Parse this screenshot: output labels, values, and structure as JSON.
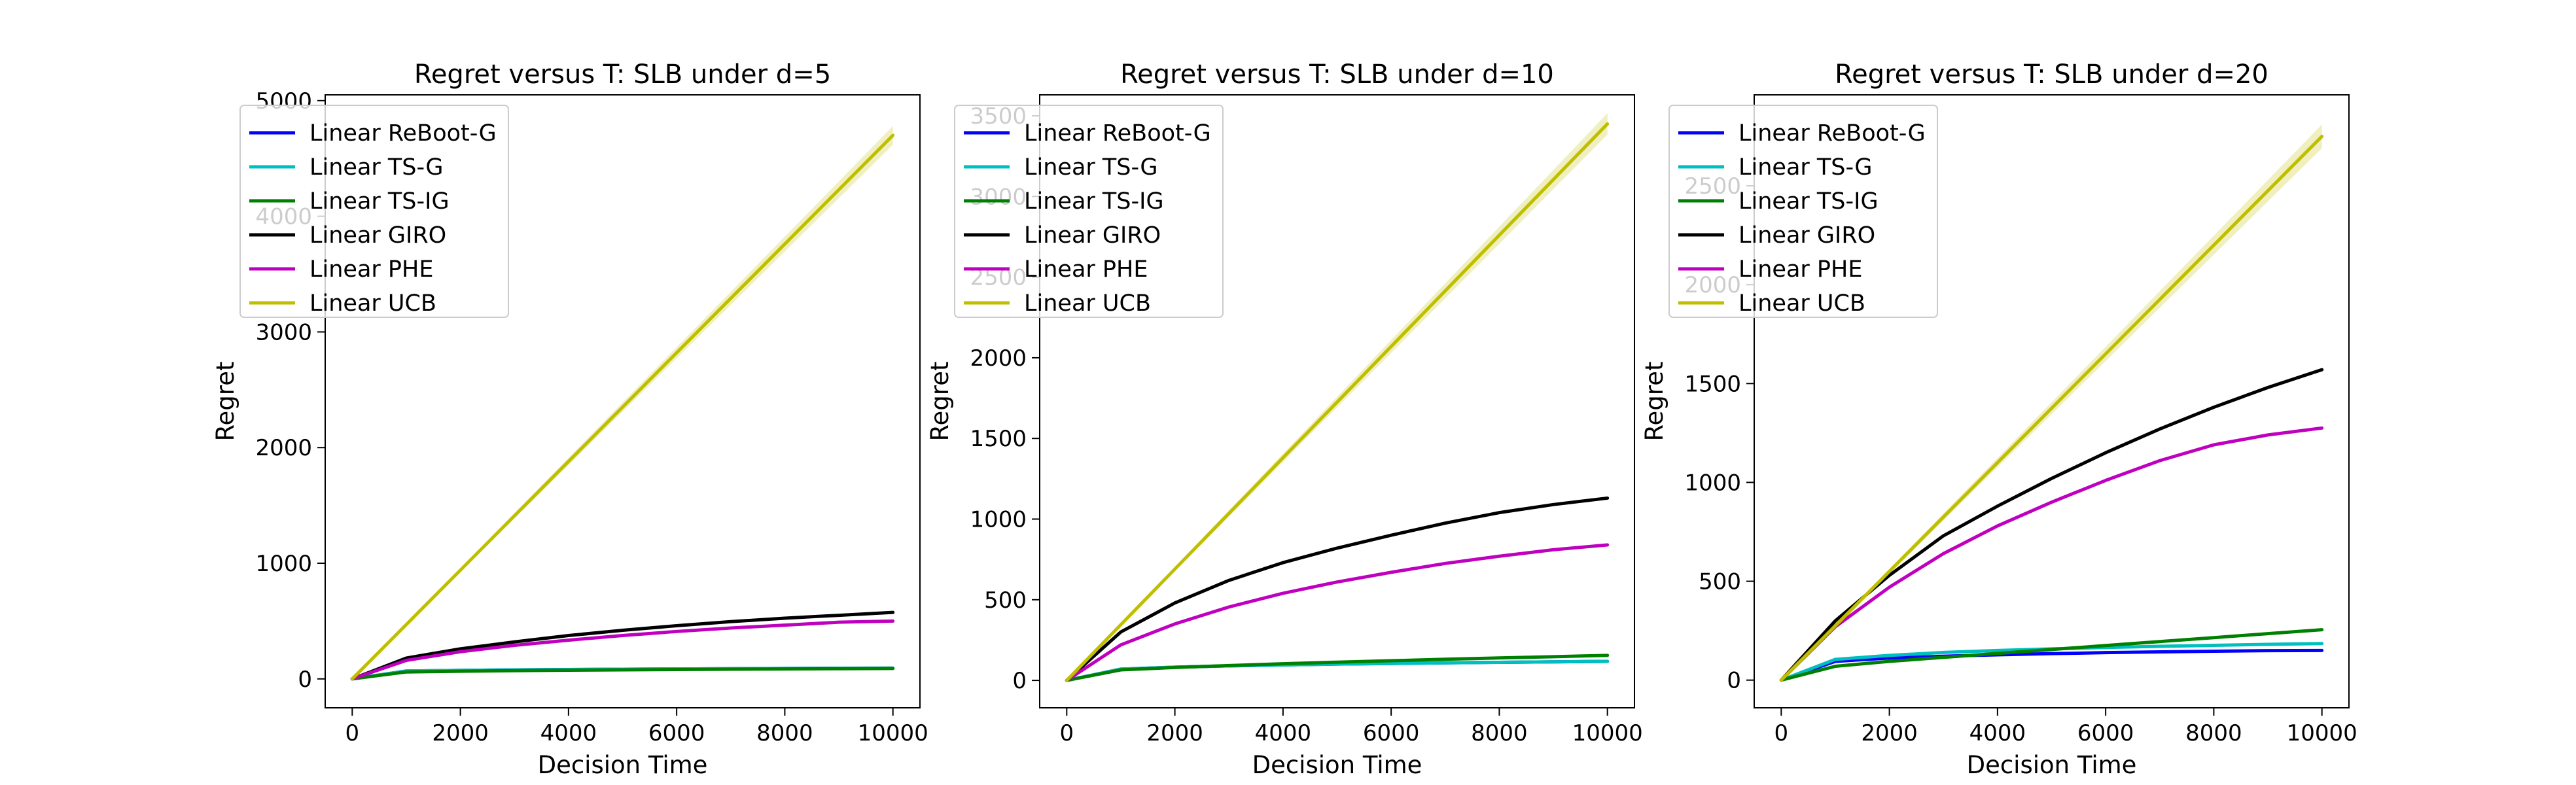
{
  "chart_data": [
    {
      "type": "line",
      "title": "Regret versus T: SLB under d=5",
      "xlabel": "Decision Time",
      "ylabel": "Regret",
      "xlim": [
        -500,
        10500
      ],
      "ylim": [
        -250,
        5050
      ],
      "xticks": [
        0,
        2000,
        4000,
        6000,
        8000,
        10000
      ],
      "yticks": [
        0,
        1000,
        2000,
        3000,
        4000,
        5000
      ],
      "x": [
        0,
        1000,
        2000,
        3000,
        4000,
        5000,
        6000,
        7000,
        8000,
        9000,
        10000
      ],
      "series": [
        {
          "name": "Linear ReBoot-G",
          "color": "#0000ff",
          "values": [
            0,
            68,
            74,
            78,
            81,
            84,
            86,
            88,
            90,
            92,
            93
          ]
        },
        {
          "name": "Linear TS-G",
          "color": "#00bfbf",
          "values": [
            0,
            68,
            74,
            78,
            81,
            84,
            86,
            88,
            90,
            92,
            93
          ]
        },
        {
          "name": "Linear TS-IG",
          "color": "#008000",
          "values": [
            0,
            60,
            66,
            71,
            75,
            78,
            81,
            84,
            86,
            88,
            90
          ]
        },
        {
          "name": "Linear GIRO",
          "color": "#000000",
          "values": [
            0,
            180,
            260,
            320,
            375,
            420,
            460,
            495,
            525,
            550,
            575
          ]
        },
        {
          "name": "Linear PHE",
          "color": "#bf00bf",
          "values": [
            0,
            160,
            235,
            290,
            335,
            375,
            410,
            440,
            465,
            490,
            500
          ]
        },
        {
          "name": "Linear UCB",
          "color": "#bfbf00",
          "values": [
            0,
            470,
            940,
            1410,
            1880,
            2350,
            2820,
            3290,
            3760,
            4230,
            4700
          ]
        }
      ],
      "band": {
        "color": "#bfbf00",
        "widths": [
          0,
          8,
          16,
          24,
          32,
          40,
          48,
          56,
          64,
          72,
          80
        ]
      }
    },
    {
      "type": "line",
      "title": "Regret versus T: SLB under d=10",
      "xlabel": "Decision Time",
      "ylabel": "Regret",
      "xlim": [
        -500,
        10500
      ],
      "ylim": [
        -170,
        3630
      ],
      "xticks": [
        0,
        2000,
        4000,
        6000,
        8000,
        10000
      ],
      "yticks": [
        0,
        500,
        1000,
        1500,
        2000,
        2500,
        3000,
        3500
      ],
      "x": [
        0,
        1000,
        2000,
        3000,
        4000,
        5000,
        6000,
        7000,
        8000,
        9000,
        10000
      ],
      "series": [
        {
          "name": "Linear ReBoot-G",
          "color": "#0000ff",
          "values": [
            0,
            70,
            82,
            90,
            96,
            101,
            105,
            109,
            112,
            115,
            118
          ]
        },
        {
          "name": "Linear TS-G",
          "color": "#00bfbf",
          "values": [
            0,
            70,
            82,
            90,
            96,
            101,
            105,
            109,
            112,
            115,
            118
          ]
        },
        {
          "name": "Linear TS-IG",
          "color": "#008000",
          "values": [
            0,
            65,
            80,
            92,
            103,
            113,
            122,
            131,
            139,
            147,
            155
          ]
        },
        {
          "name": "Linear GIRO",
          "color": "#000000",
          "values": [
            0,
            300,
            480,
            620,
            730,
            820,
            900,
            975,
            1040,
            1090,
            1130
          ]
        },
        {
          "name": "Linear PHE",
          "color": "#bf00bf",
          "values": [
            0,
            220,
            350,
            455,
            540,
            610,
            670,
            725,
            770,
            810,
            840
          ]
        },
        {
          "name": "Linear UCB",
          "color": "#bfbf00",
          "values": [
            0,
            345,
            690,
            1035,
            1380,
            1725,
            2070,
            2415,
            2760,
            3105,
            3450
          ]
        }
      ],
      "band": {
        "color": "#bfbf00",
        "widths": [
          0,
          7,
          13,
          20,
          26,
          33,
          40,
          46,
          53,
          59,
          66
        ]
      }
    },
    {
      "type": "line",
      "title": "Regret versus T: SLB under d=20",
      "xlabel": "Decision Time",
      "ylabel": "Regret",
      "xlim": [
        -500,
        10500
      ],
      "ylim": [
        -140,
        2960
      ],
      "xticks": [
        0,
        2000,
        4000,
        6000,
        8000,
        10000
      ],
      "yticks": [
        0,
        500,
        1000,
        1500,
        2000,
        2500
      ],
      "x": [
        0,
        1000,
        2000,
        3000,
        4000,
        5000,
        6000,
        7000,
        8000,
        9000,
        10000
      ],
      "series": [
        {
          "name": "Linear ReBoot-G",
          "color": "#0000ff",
          "values": [
            0,
            95,
            112,
            121,
            128,
            134,
            139,
            143,
            146,
            149,
            150
          ]
        },
        {
          "name": "Linear TS-G",
          "color": "#00bfbf",
          "values": [
            0,
            105,
            125,
            140,
            150,
            158,
            165,
            171,
            176,
            181,
            185
          ]
        },
        {
          "name": "Linear TS-IG",
          "color": "#008000",
          "values": [
            0,
            70,
            95,
            115,
            135,
            155,
            175,
            195,
            215,
            235,
            255
          ]
        },
        {
          "name": "Linear GIRO",
          "color": "#000000",
          "values": [
            0,
            300,
            530,
            730,
            880,
            1020,
            1150,
            1270,
            1380,
            1480,
            1570
          ]
        },
        {
          "name": "Linear PHE",
          "color": "#bf00bf",
          "values": [
            0,
            270,
            470,
            640,
            780,
            900,
            1010,
            1110,
            1190,
            1240,
            1275
          ]
        },
        {
          "name": "Linear UCB",
          "color": "#bfbf00",
          "values": [
            0,
            275,
            550,
            825,
            1100,
            1375,
            1650,
            1925,
            2200,
            2475,
            2750
          ]
        }
      ],
      "band": {
        "color": "#bfbf00",
        "widths": [
          0,
          6,
          12,
          18,
          24,
          30,
          36,
          42,
          48,
          54,
          60
        ]
      }
    }
  ]
}
